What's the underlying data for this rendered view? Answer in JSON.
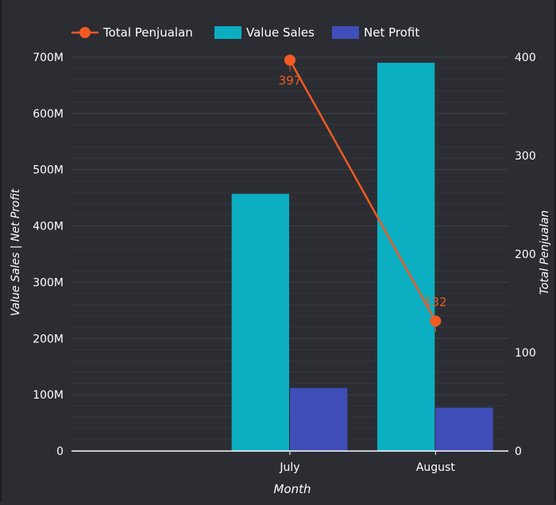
{
  "colors": {
    "background": "#2b2d33",
    "grid": "#3e4149",
    "grid_minor": "#34363d",
    "axis_line": "#ffffff",
    "text": "#ffffff",
    "value_sales": "#0bafc1",
    "net_profit": "#3f4eb8",
    "total_penjualan": "#f25a22"
  },
  "chart_data": {
    "type": "bar",
    "categories": [
      "",
      "July",
      "August"
    ],
    "series": [
      {
        "name": "Value Sales",
        "type": "bar",
        "axis": "left",
        "values": [
          null,
          457000000,
          690000000
        ]
      },
      {
        "name": "Net Profit",
        "type": "bar",
        "axis": "left",
        "values": [
          null,
          112000000,
          77000000
        ]
      },
      {
        "name": "Total Penjualan",
        "type": "line",
        "axis": "right",
        "values": [
          null,
          397,
          132
        ],
        "data_labels": [
          "",
          "397",
          "132"
        ]
      }
    ],
    "legend": [
      "Total Penjualan",
      "Value Sales",
      "Net Profit"
    ],
    "legend_position": "top-left",
    "xlabel": "Month",
    "ylabel": "Value Sales  |  Net Profit",
    "y2label": "Total Penjualan",
    "ylim": [
      0,
      700000000
    ],
    "y_ticks": [
      0,
      100000000,
      200000000,
      300000000,
      400000000,
      500000000,
      600000000,
      700000000
    ],
    "y_tick_labels": [
      "0",
      "100M",
      "200M",
      "300M",
      "400M",
      "500M",
      "600M",
      "700M"
    ],
    "y2lim": [
      0,
      400
    ],
    "y2_ticks": [
      0,
      100,
      200,
      300,
      400
    ],
    "y2_tick_labels": [
      "0",
      "100",
      "200",
      "300",
      "400"
    ],
    "grid": true
  }
}
